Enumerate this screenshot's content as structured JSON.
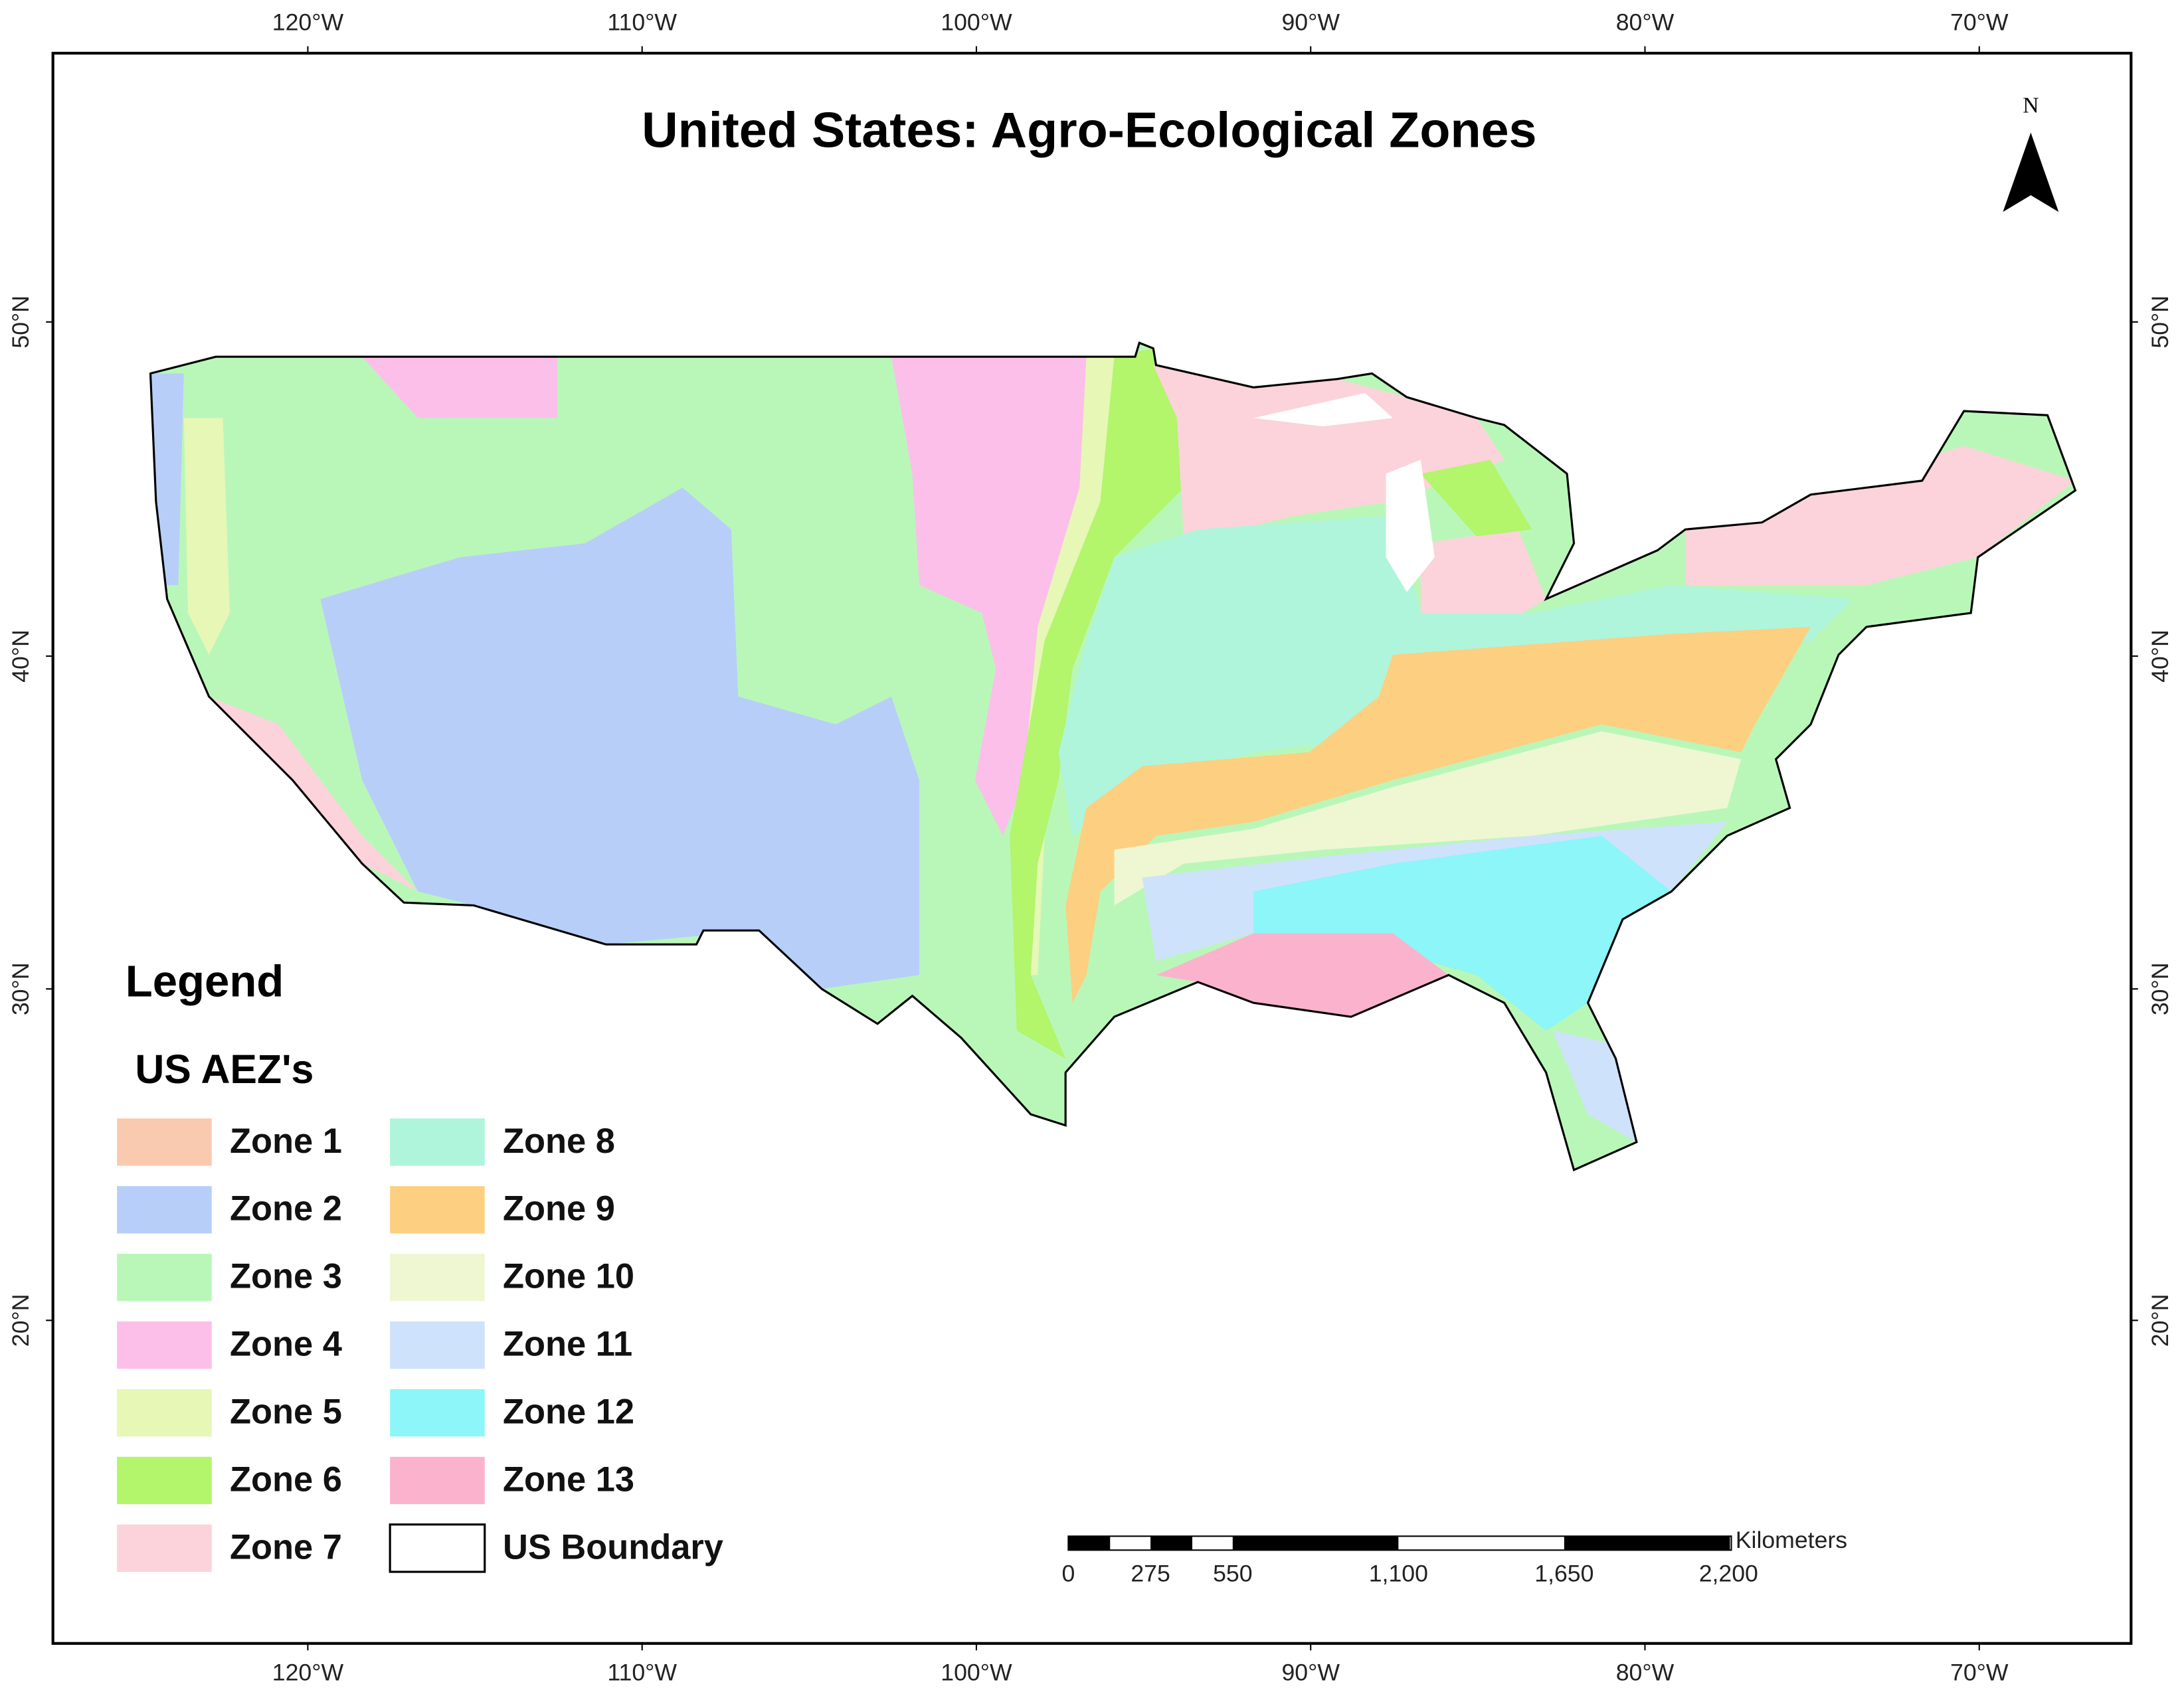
{
  "title": "United States: Agro-Ecological Zones",
  "north": "N",
  "graticule": {
    "longitudes": [
      "120°W",
      "110°W",
      "100°W",
      "90°W",
      "80°W",
      "70°W"
    ],
    "latitudes": [
      "50°N",
      "40°N",
      "30°N",
      "20°N"
    ]
  },
  "legend": {
    "title": "Legend",
    "subtitle": "US AEZ's",
    "items": [
      {
        "label": "Zone 1",
        "color": "#f9c9b0"
      },
      {
        "label": "Zone 2",
        "color": "#b7cef9"
      },
      {
        "label": "Zone 3",
        "color": "#b9f7b9"
      },
      {
        "label": "Zone 4",
        "color": "#fbbfea"
      },
      {
        "label": "Zone 5",
        "color": "#e6f7b6"
      },
      {
        "label": "Zone 6",
        "color": "#b3f56b"
      },
      {
        "label": "Zone 7",
        "color": "#fcd3da"
      },
      {
        "label": "Zone 8",
        "color": "#aef5dc"
      },
      {
        "label": "Zone 9",
        "color": "#fdcf80"
      },
      {
        "label": "Zone 10",
        "color": "#eef7d2"
      },
      {
        "label": "Zone 11",
        "color": "#cfe2fb"
      },
      {
        "label": "Zone 12",
        "color": "#8cf6f8"
      },
      {
        "label": "Zone 13",
        "color": "#fbb3cd"
      },
      {
        "label": "US Boundary",
        "color": "#ffffff"
      }
    ]
  },
  "scale_bar": {
    "unit": "Kilometers",
    "labels": [
      "0",
      "275",
      "550",
      "1,100",
      "1,650",
      "2,200"
    ]
  }
}
